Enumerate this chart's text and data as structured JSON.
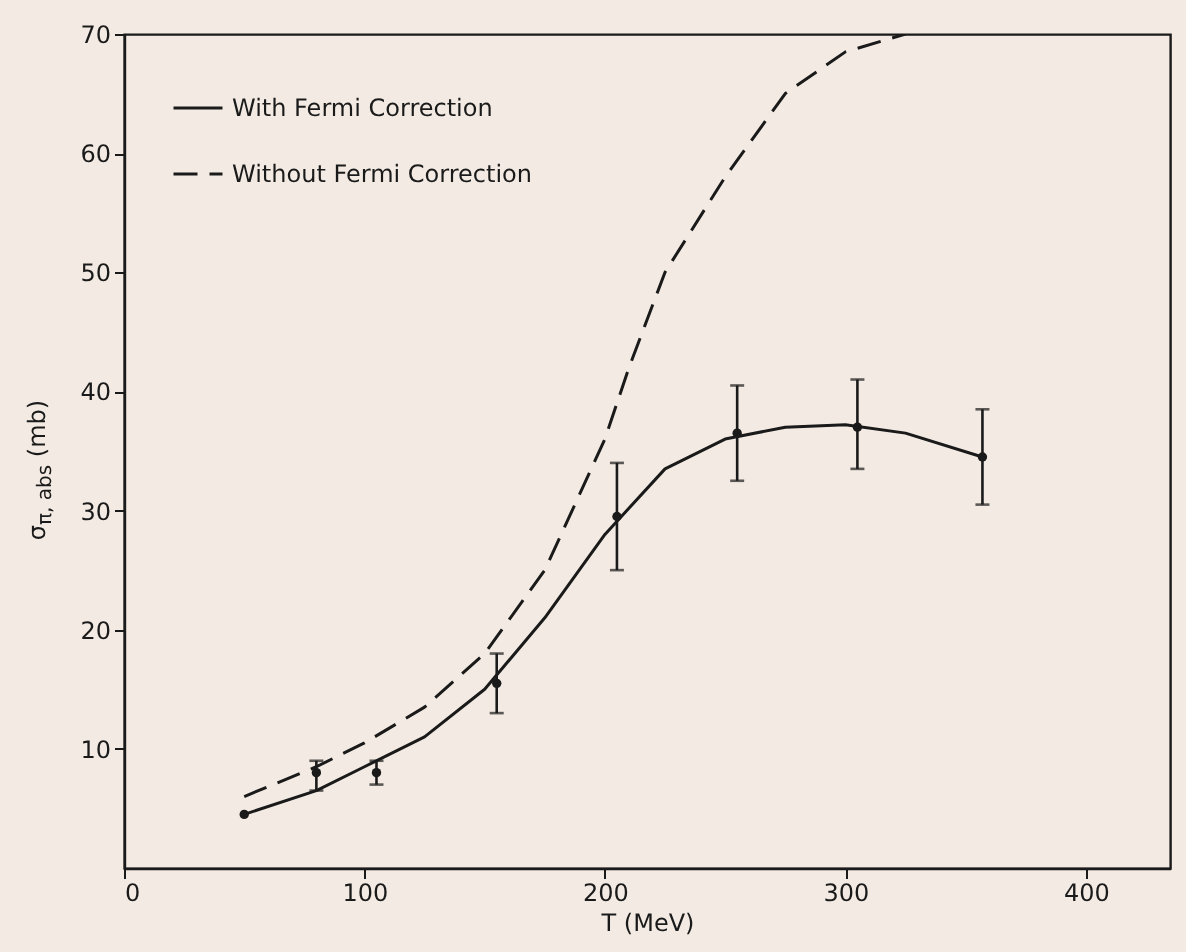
{
  "chart_data": {
    "type": "line",
    "xlabel": "T (MeV)",
    "ylabel": "σ$_{π, abs}$ (mb)",
    "xlim": [
      0,
      435
    ],
    "xticks": [
      0,
      100,
      200,
      300,
      400
    ],
    "ylim": [
      0,
      70
    ],
    "yticks": [
      10,
      20,
      30,
      40,
      50,
      60,
      70
    ],
    "grid": false,
    "legend": "top left",
    "series": [
      {
        "name": "With Fermi Correction",
        "line_style": "solid",
        "color": "#1a1a1a",
        "x": [
          50,
          80,
          100,
          125,
          150,
          175,
          200,
          225,
          250,
          275,
          300,
          325,
          357
        ],
        "values": [
          4.5,
          6.5,
          8.5,
          11,
          15,
          21,
          28,
          33.5,
          36,
          37,
          37.2,
          36.5,
          34.5
        ]
      },
      {
        "name": "Without Fermi Correction",
        "line_style": "dashed",
        "color": "#1a1a1a",
        "x": [
          50,
          80,
          100,
          125,
          150,
          175,
          200,
          210,
          225,
          250,
          275,
          300,
          325
        ],
        "values": [
          6,
          8.5,
          10.5,
          13.5,
          18,
          25,
          36,
          42,
          50,
          58,
          65,
          68.5,
          70
        ]
      },
      {
        "type": "scatter",
        "marker": "circle",
        "color": "#1a1a1a",
        "x": [
          50,
          80,
          105,
          155,
          205,
          255,
          305,
          357
        ],
        "values": [
          4.5,
          8,
          8,
          15.5,
          29.5,
          36.5,
          37,
          34.5
        ],
        "errors": [
          null,
          [
            6.5,
            9
          ],
          [
            7,
            9
          ],
          [
            13,
            18
          ],
          [
            25,
            34
          ],
          [
            32.5,
            40.5
          ],
          [
            33.5,
            41
          ],
          [
            30.5,
            38.5
          ]
        ]
      }
    ]
  }
}
